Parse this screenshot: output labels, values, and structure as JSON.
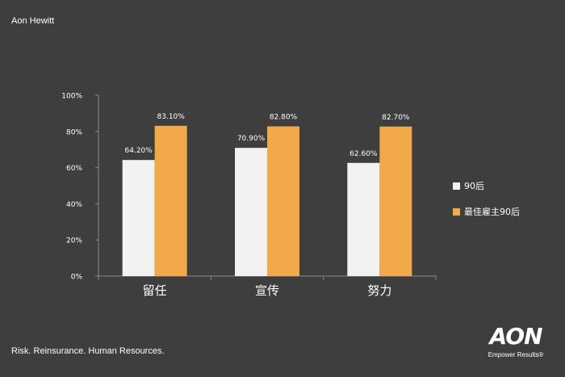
{
  "header": {
    "brand": "Aon Hewitt"
  },
  "footer": {
    "tagline": "Risk. Reinsurance. Human Resources.",
    "logo_word": "AON",
    "logo_tag": "Empower Results®"
  },
  "colors": {
    "background": "#3f3e3e",
    "series_1": "#f2f2f2",
    "series_2": "#f2a94a",
    "axis": "#8a8a8a",
    "text": "#ffffff"
  },
  "chart_data": {
    "type": "bar",
    "categories": [
      "留任",
      "宣传",
      "努力"
    ],
    "series": [
      {
        "name": "90后",
        "values": [
          64.2,
          70.9,
          62.6
        ],
        "labels": [
          "64.20%",
          "70.90%",
          "62.60%"
        ]
      },
      {
        "name": "最佳雇主90后",
        "values": [
          83.1,
          82.8,
          82.7
        ],
        "labels": [
          "83.10%",
          "82.80%",
          "82.70%"
        ]
      }
    ],
    "yticks": [
      "0%",
      "20%",
      "40%",
      "60%",
      "80%",
      "100%"
    ],
    "ylim": [
      0,
      100
    ],
    "legend": "right",
    "grid": false
  }
}
